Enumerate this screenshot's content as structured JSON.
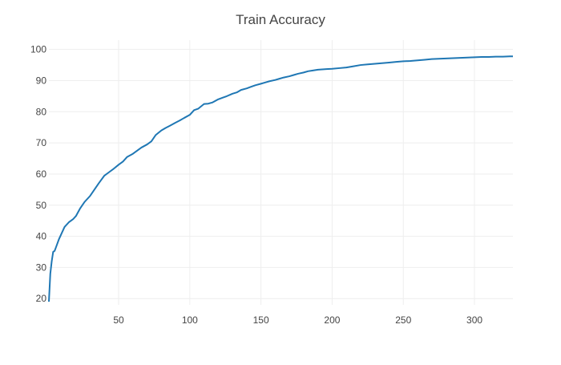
{
  "chart_data": {
    "type": "line",
    "title": "Train Accuracy",
    "xlabel": "",
    "ylabel": "",
    "xlim": [
      1,
      327
    ],
    "ylim": [
      18,
      103
    ],
    "xticks": [
      50,
      100,
      150,
      200,
      250,
      300
    ],
    "yticks": [
      20,
      30,
      40,
      50,
      60,
      70,
      80,
      90,
      100
    ],
    "grid": true,
    "line_color": "#1f77b4",
    "grid_color": "#eeeeee",
    "series": [
      {
        "x": [
          1,
          2,
          3,
          4,
          5,
          6,
          8,
          10,
          12,
          15,
          18,
          20,
          23,
          26,
          30,
          33,
          36,
          40,
          43,
          46,
          50,
          53,
          56,
          60,
          63,
          66,
          70,
          73,
          76,
          80,
          83,
          86,
          90,
          93,
          96,
          100,
          103,
          106,
          110,
          113,
          116,
          120,
          123,
          126,
          130,
          133,
          136,
          140,
          143,
          146,
          150,
          153,
          156,
          160,
          163,
          166,
          170,
          173,
          176,
          180,
          183,
          186,
          190,
          193,
          196,
          200,
          205,
          210,
          215,
          220,
          225,
          230,
          235,
          240,
          245,
          250,
          255,
          260,
          265,
          270,
          275,
          280,
          285,
          290,
          295,
          300,
          305,
          310,
          315,
          320,
          325,
          327
        ],
        "y": [
          19,
          28,
          32,
          35,
          35.3,
          36.5,
          39,
          41,
          43,
          44.5,
          45.5,
          46.5,
          49,
          51,
          53,
          55,
          57,
          59.5,
          60.5,
          61.5,
          63,
          64,
          65.5,
          66.5,
          67.5,
          68.5,
          69.5,
          70.5,
          72.5,
          74,
          74.8,
          75.5,
          76.5,
          77.2,
          78,
          79,
          80.5,
          81,
          82.5,
          82.6,
          83,
          84,
          84.5,
          85,
          85.8,
          86.2,
          87,
          87.5,
          88,
          88.5,
          89,
          89.4,
          89.8,
          90.2,
          90.6,
          91,
          91.4,
          91.8,
          92.2,
          92.6,
          93,
          93.2,
          93.5,
          93.6,
          93.7,
          93.8,
          94,
          94.2,
          94.6,
          95,
          95.2,
          95.4,
          95.6,
          95.8,
          96,
          96.2,
          96.3,
          96.5,
          96.7,
          96.9,
          97,
          97.1,
          97.2,
          97.3,
          97.4,
          97.5,
          97.6,
          97.6,
          97.7,
          97.7,
          97.8,
          97.8
        ]
      }
    ]
  }
}
